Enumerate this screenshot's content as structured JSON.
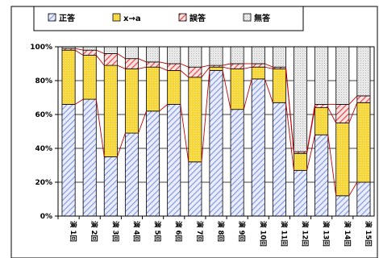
{
  "chart_data": {
    "type": "bar",
    "stacked": true,
    "percent": true,
    "categories": [
      "演 1回",
      "演 2回",
      "演 3回",
      "演 4回",
      "演 5回",
      "演 6回",
      "演 7回",
      "演 8回",
      "演 9回",
      "演 10回",
      "演 11回",
      "演 12回",
      "演 13回",
      "演 14回",
      "演 15回"
    ],
    "series": [
      {
        "name": "正答",
        "color": "#aab8f0",
        "pattern": "hatch-blue",
        "values": [
          66,
          69,
          35,
          49,
          62,
          66,
          32,
          86,
          63,
          81,
          67,
          27,
          48,
          12,
          20
        ]
      },
      {
        "name": "x→a",
        "color": "#f5dc4a",
        "pattern": "dots-yellow",
        "values": [
          32,
          26,
          54,
          38,
          26,
          20,
          50,
          2,
          24,
          7,
          20,
          10,
          16,
          43,
          47
        ]
      },
      {
        "name": "誤答",
        "color": "#e84848",
        "pattern": "hatch-red",
        "values": [
          1,
          3,
          7,
          6,
          3,
          4,
          6,
          1,
          3,
          2,
          1,
          1,
          2,
          11,
          4
        ]
      },
      {
        "name": "無答",
        "color": "#d8d8d8",
        "pattern": "dots-gray",
        "values": [
          1,
          2,
          4,
          7,
          9,
          10,
          12,
          11,
          10,
          10,
          12,
          62,
          34,
          34,
          29
        ]
      }
    ],
    "yticks": [
      "0%",
      "20%",
      "40%",
      "60%",
      "80%",
      "100%"
    ],
    "ylim": [
      0,
      100
    ],
    "grid": true,
    "legend": "top"
  }
}
